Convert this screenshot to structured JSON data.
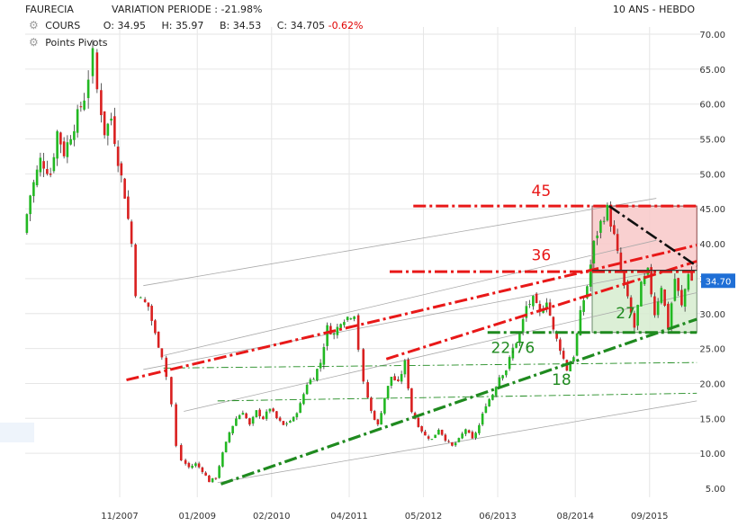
{
  "header": {
    "symbol": "FAURECIA",
    "variation": "VARIATION PERIODE : -21.98%",
    "period": "10 ANS - HEBDO",
    "series_label": "COURS",
    "o_label": "O:",
    "o_value": "34.95",
    "h_label": "H:",
    "h_value": "35.97",
    "b_label": "B:",
    "b_value": "34.53",
    "c_label": "C:",
    "c_value": "34.705",
    "c_change": "-0.62%",
    "pivots_label": "Points Pivots"
  },
  "colors": {
    "up": "#22b822",
    "down": "#d92020",
    "resistance": "#e81818",
    "support": "#1f8a1f",
    "price_tag_bg": "#1f6fd6",
    "grid": "#e6e6e6"
  },
  "chart_data": {
    "type": "candlestick",
    "ylim": [
      5,
      70
    ],
    "y_ticks": [
      "70.00",
      "65.00",
      "60.00",
      "55.00",
      "50.00",
      "45.00",
      "40.00",
      "35.00",
      "30.00",
      "25.00",
      "20.00",
      "15.00",
      "10.00",
      "5.00"
    ],
    "x_ticks": [
      "11/2007",
      "01/2009",
      "02/2010",
      "04/2011",
      "05/2012",
      "06/2013",
      "08/2014",
      "09/2015"
    ],
    "x_tick_values": [
      2007.85,
      2009.0,
      2010.1,
      2011.25,
      2012.35,
      2013.45,
      2014.6,
      2015.7
    ],
    "xlim": [
      2006.45,
      2016.45
    ],
    "last_price": "34.70",
    "path": [
      [
        2006.45,
        41.5
      ],
      [
        2006.55,
        47
      ],
      [
        2006.7,
        52
      ],
      [
        2006.85,
        50
      ],
      [
        2006.95,
        56
      ],
      [
        2007.05,
        53
      ],
      [
        2007.2,
        57
      ],
      [
        2007.35,
        61
      ],
      [
        2007.42,
        64
      ],
      [
        2007.48,
        67
      ],
      [
        2007.55,
        62
      ],
      [
        2007.65,
        56
      ],
      [
        2007.75,
        58
      ],
      [
        2007.85,
        52
      ],
      [
        2007.95,
        47
      ],
      [
        2008.05,
        40
      ],
      [
        2008.12,
        33
      ],
      [
        2008.2,
        32
      ],
      [
        2008.3,
        31
      ],
      [
        2008.4,
        27
      ],
      [
        2008.5,
        24
      ],
      [
        2008.58,
        21
      ],
      [
        2008.65,
        17
      ],
      [
        2008.72,
        11
      ],
      [
        2008.8,
        9
      ],
      [
        2008.9,
        8
      ],
      [
        2009.0,
        8.5
      ],
      [
        2009.1,
        7.5
      ],
      [
        2009.2,
        6
      ],
      [
        2009.3,
        6.5
      ],
      [
        2009.4,
        10
      ],
      [
        2009.5,
        13
      ],
      [
        2009.6,
        15
      ],
      [
        2009.7,
        16
      ],
      [
        2009.8,
        14
      ],
      [
        2009.9,
        16
      ],
      [
        2010.0,
        15
      ],
      [
        2010.1,
        16.5
      ],
      [
        2010.2,
        15
      ],
      [
        2010.3,
        14
      ],
      [
        2010.45,
        15
      ],
      [
        2010.55,
        17
      ],
      [
        2010.65,
        20
      ],
      [
        2010.75,
        21
      ],
      [
        2010.85,
        23
      ],
      [
        2010.95,
        28
      ],
      [
        2011.05,
        27
      ],
      [
        2011.15,
        29
      ],
      [
        2011.25,
        29.5
      ],
      [
        2011.35,
        30
      ],
      [
        2011.42,
        25
      ],
      [
        2011.5,
        20
      ],
      [
        2011.6,
        16
      ],
      [
        2011.7,
        14
      ],
      [
        2011.8,
        18
      ],
      [
        2011.9,
        21
      ],
      [
        2012.0,
        20
      ],
      [
        2012.1,
        23
      ],
      [
        2012.2,
        16
      ],
      [
        2012.3,
        14
      ],
      [
        2012.4,
        12.5
      ],
      [
        2012.5,
        12
      ],
      [
        2012.6,
        13.5
      ],
      [
        2012.7,
        12
      ],
      [
        2012.8,
        11
      ],
      [
        2012.9,
        12
      ],
      [
        2013.0,
        13.5
      ],
      [
        2013.1,
        12
      ],
      [
        2013.2,
        14
      ],
      [
        2013.3,
        17
      ],
      [
        2013.4,
        18.5
      ],
      [
        2013.5,
        21
      ],
      [
        2013.6,
        22
      ],
      [
        2013.7,
        25
      ],
      [
        2013.8,
        27
      ],
      [
        2013.9,
        31
      ],
      [
        2014.0,
        32
      ],
      [
        2014.1,
        30
      ],
      [
        2014.2,
        32
      ],
      [
        2014.3,
        27.5
      ],
      [
        2014.4,
        25
      ],
      [
        2014.5,
        22
      ],
      [
        2014.6,
        24
      ],
      [
        2014.7,
        30
      ],
      [
        2014.8,
        34
      ],
      [
        2014.9,
        40
      ],
      [
        2015.0,
        43
      ],
      [
        2015.1,
        45
      ],
      [
        2015.2,
        41
      ],
      [
        2015.3,
        36
      ],
      [
        2015.4,
        32
      ],
      [
        2015.5,
        28
      ],
      [
        2015.6,
        34
      ],
      [
        2015.7,
        36
      ],
      [
        2015.8,
        30
      ],
      [
        2015.9,
        34
      ],
      [
        2016.0,
        28
      ],
      [
        2016.1,
        35
      ],
      [
        2016.2,
        31
      ],
      [
        2016.3,
        36
      ],
      [
        2016.35,
        34.7
      ]
    ],
    "annotations": [
      {
        "label": "45",
        "x": 2013.95,
        "y": 46.8,
        "color": "#e81818"
      },
      {
        "label": "36",
        "x": 2013.95,
        "y": 37.6,
        "color": "#e81818"
      },
      {
        "label": "27",
        "x": 2015.2,
        "y": 29.3,
        "color": "#1f8a1f"
      },
      {
        "label": "22.76",
        "x": 2013.35,
        "y": 24.4,
        "color": "#1f8a1f"
      },
      {
        "label": "18",
        "x": 2014.25,
        "y": 19.8,
        "color": "#1f8a1f"
      }
    ],
    "levels": {
      "red_h1": {
        "x1": 2012.2,
        "x2": 2016.4,
        "y": 45.4
      },
      "red_h2": {
        "x1": 2011.85,
        "x2": 2016.4,
        "y": 36.0
      },
      "green_h": {
        "x1": 2013.3,
        "x2": 2016.4,
        "y": 27.3
      }
    },
    "trendlines": {
      "red_upper": {
        "x1": 2007.95,
        "x2": 2016.4,
        "y1": 20.5,
        "y2": 39.8
      },
      "red_lower": {
        "x1": 2011.8,
        "x2": 2016.4,
        "y1": 23.5,
        "y2": 37.5
      },
      "green_lower": {
        "x1": 2009.35,
        "x2": 2016.4,
        "y1": 5.6,
        "y2": 29.2
      },
      "black_dash": {
        "x1": 2015.1,
        "x2": 2016.4,
        "y1": 45.4,
        "y2": 36.8
      },
      "gray_1": {
        "x1": 2008.2,
        "x2": 2015.8,
        "y1": 34,
        "y2": 46.5
      },
      "gray_2": {
        "x1": 2008.5,
        "x2": 2015.8,
        "y1": 24,
        "y2": 40.5
      },
      "gray_3": {
        "x1": 2008.2,
        "x2": 2015.8,
        "y1": 22,
        "y2": 36
      },
      "gray_4": {
        "x1": 2008.8,
        "x2": 2016.4,
        "y1": 16,
        "y2": 33
      },
      "gray_5": {
        "x1": 2009.3,
        "x2": 2016.4,
        "y1": 5.8,
        "y2": 17.5
      },
      "green_thin_1": {
        "x1": 2008.5,
        "x2": 2016.4,
        "y1": 22.2,
        "y2": 23
      },
      "green_thin_2": {
        "x1": 2009.3,
        "x2": 2016.4,
        "y1": 17.5,
        "y2": 18.6
      }
    },
    "zones": {
      "red_zone": {
        "x1": 2014.85,
        "x2": 2016.4,
        "y1": 36.2,
        "y2": 45.4
      },
      "green_zone": {
        "x1": 2014.85,
        "x2": 2016.4,
        "y1": 27.3,
        "y2": 36.2
      }
    }
  }
}
